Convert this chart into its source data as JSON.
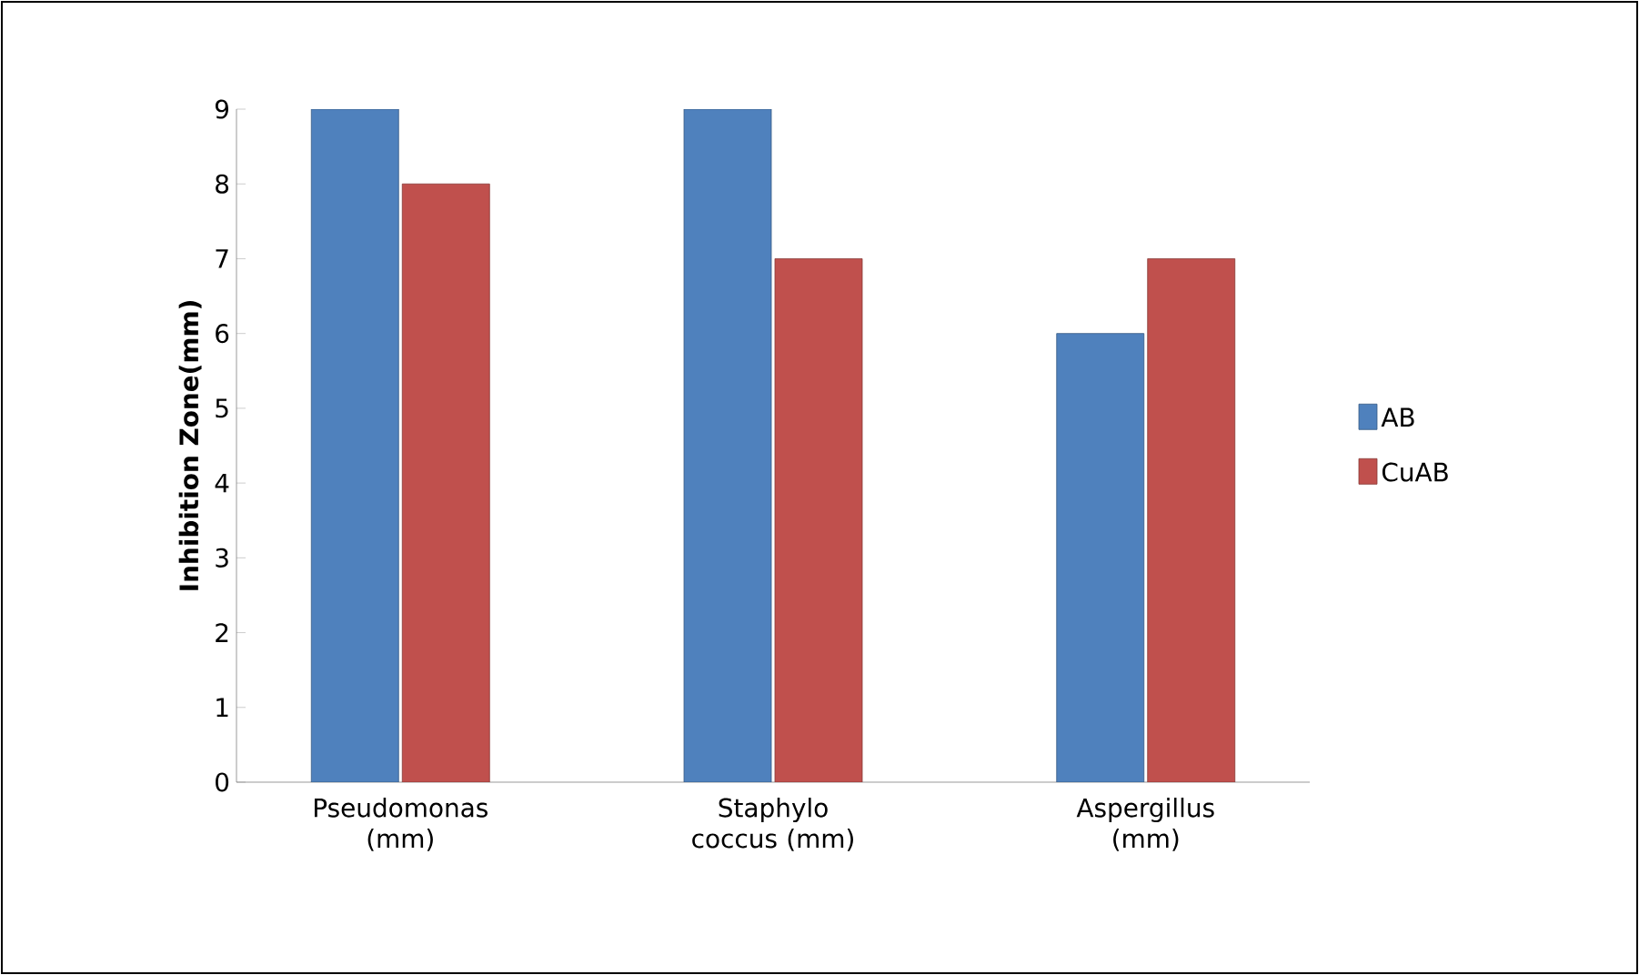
{
  "chart_data": {
    "type": "bar",
    "ylabel": "Inhibition Zone(mm)",
    "categories": [
      "Pseudomonas (mm)",
      "Staphylo coccus (mm)",
      "Aspergillus (mm)"
    ],
    "series": [
      {
        "name": "AB",
        "color": "#4f81bd",
        "values": [
          9,
          9,
          6
        ]
      },
      {
        "name": "CuAB",
        "color": "#c0504d",
        "values": [
          8,
          7,
          7
        ]
      }
    ],
    "ylim": [
      0,
      9
    ],
    "yticks": [
      0,
      1,
      2,
      3,
      4,
      5,
      6,
      7,
      8,
      9
    ],
    "grid": false,
    "legend": "right"
  }
}
